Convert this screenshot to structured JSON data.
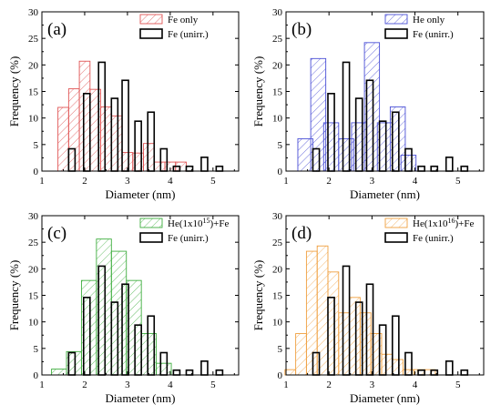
{
  "chart_data": [
    {
      "type": "bar",
      "panel_label": "(a)",
      "xlabel": "Diameter (nm)",
      "ylabel": "Frequency (%)",
      "xlim": [
        1,
        5.6
      ],
      "ylim": [
        0,
        30
      ],
      "xticks": [
        1,
        2,
        3,
        4,
        5
      ],
      "yticks": [
        0,
        5,
        10,
        15,
        20,
        25,
        30
      ],
      "legend_position": "top-right",
      "series": [
        {
          "name": "Fe only",
          "style": "hatched",
          "color": "#e05555",
          "bin_width": 0.25,
          "x": [
            1.5,
            1.75,
            2.0,
            2.25,
            2.5,
            2.75,
            3.0,
            3.25,
            3.5,
            3.75,
            4.0,
            4.25
          ],
          "values": [
            12.0,
            15.5,
            20.7,
            15.4,
            12.1,
            10.4,
            3.5,
            3.4,
            5.2,
            1.7,
            1.7,
            1.7
          ]
        },
        {
          "name": "Fe (unirr.)",
          "style": "outline",
          "color": "#000000",
          "bin_width": 0.15,
          "x": [
            1.7,
            2.05,
            2.4,
            2.7,
            2.95,
            3.25,
            3.55,
            3.85,
            4.15,
            4.45,
            4.8,
            5.15
          ],
          "values": [
            4.2,
            14.6,
            20.5,
            13.7,
            17.1,
            9.4,
            11.1,
            4.2,
            0.9,
            0.9,
            2.6,
            0.9
          ]
        }
      ]
    },
    {
      "type": "bar",
      "panel_label": "(b)",
      "xlabel": "Diameter (nm)",
      "ylabel": "Frequency (%)",
      "xlim": [
        1,
        5.6
      ],
      "ylim": [
        0,
        30
      ],
      "xticks": [
        1,
        2,
        3,
        4,
        5
      ],
      "yticks": [
        0,
        5,
        10,
        15,
        20,
        25,
        30
      ],
      "legend_position": "top-right",
      "series": [
        {
          "name": "He only",
          "style": "hatched",
          "color": "#4a4fd6",
          "bin_width": 0.35,
          "x": [
            1.45,
            1.75,
            2.05,
            2.4,
            2.7,
            3.0,
            3.3,
            3.6,
            3.85
          ],
          "values": [
            6.1,
            21.2,
            9.1,
            6.1,
            9.1,
            24.2,
            9.1,
            12.1,
            3.0
          ]
        },
        {
          "name": "Fe (unirr.)",
          "style": "outline",
          "color": "#000000",
          "bin_width": 0.15,
          "x": [
            1.7,
            2.05,
            2.4,
            2.7,
            2.95,
            3.25,
            3.55,
            3.85,
            4.15,
            4.45,
            4.8,
            5.15
          ],
          "values": [
            4.2,
            14.6,
            20.5,
            13.7,
            17.1,
            9.4,
            11.1,
            4.2,
            0.9,
            0.9,
            2.6,
            0.9
          ]
        }
      ]
    },
    {
      "type": "bar",
      "panel_label": "(c)",
      "xlabel": "Diameter (nm)",
      "ylabel": "Frequency (%)",
      "xlim": [
        1,
        5.6
      ],
      "ylim": [
        0,
        30
      ],
      "xticks": [
        1,
        2,
        3,
        4,
        5
      ],
      "yticks": [
        0,
        5,
        10,
        15,
        20,
        25,
        30
      ],
      "legend_position": "top-right",
      "series": [
        {
          "name": "He(1x10^15)+Fe",
          "style": "hatched",
          "color": "#3fae3f",
          "bin_width": 0.35,
          "x": [
            1.4,
            1.75,
            2.1,
            2.45,
            2.8,
            3.15,
            3.5,
            3.85
          ],
          "values": [
            1.1,
            4.4,
            17.8,
            25.6,
            23.3,
            17.8,
            7.8,
            2.2
          ]
        },
        {
          "name": "Fe (unirr.)",
          "style": "outline",
          "color": "#000000",
          "bin_width": 0.15,
          "x": [
            1.7,
            2.05,
            2.4,
            2.7,
            2.95,
            3.25,
            3.55,
            3.85,
            4.15,
            4.45,
            4.8,
            5.15
          ],
          "values": [
            4.2,
            14.6,
            20.5,
            13.7,
            17.1,
            9.4,
            11.1,
            4.2,
            0.9,
            0.9,
            2.6,
            0.9
          ]
        }
      ]
    },
    {
      "type": "bar",
      "panel_label": "(d)",
      "xlabel": "Diameter (nm)",
      "ylabel": "Frequency (%)",
      "xlim": [
        1,
        5.6
      ],
      "ylim": [
        0,
        30
      ],
      "xticks": [
        1,
        2,
        3,
        4,
        5
      ],
      "yticks": [
        0,
        5,
        10,
        15,
        20,
        25,
        30
      ],
      "legend_position": "top-right",
      "series": [
        {
          "name": "He(1x10^16)+Fe",
          "style": "hatched",
          "color": "#f0a040",
          "bin_width": 0.25,
          "x": [
            1.1,
            1.35,
            1.6,
            1.85,
            2.1,
            2.35,
            2.6,
            2.85,
            3.1,
            3.35,
            3.6,
            3.85,
            4.1,
            4.35
          ],
          "values": [
            1.0,
            7.8,
            23.3,
            24.3,
            19.4,
            11.7,
            14.6,
            11.7,
            7.8,
            3.9,
            2.9,
            1.0,
            1.0,
            1.0
          ]
        },
        {
          "name": "Fe (unirr.)",
          "style": "outline",
          "color": "#000000",
          "bin_width": 0.15,
          "x": [
            1.7,
            2.05,
            2.4,
            2.7,
            2.95,
            3.25,
            3.55,
            3.85,
            4.15,
            4.45,
            4.8,
            5.15
          ],
          "values": [
            4.2,
            14.6,
            20.5,
            13.7,
            17.1,
            9.4,
            11.1,
            4.2,
            0.9,
            0.9,
            2.6,
            0.9
          ]
        }
      ]
    }
  ]
}
